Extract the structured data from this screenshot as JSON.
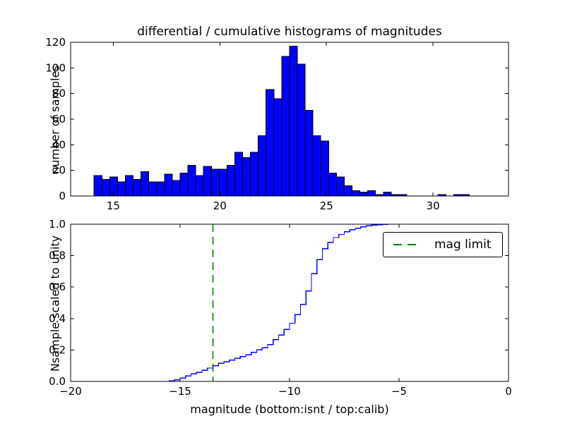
{
  "figure": {
    "background": "#ffffff",
    "title": "differential / cumulative histograms of magnitudes"
  },
  "colors": {
    "hist_fill": "#0000ff",
    "hist_edge": "#000000",
    "cumulative_line": "#0000ff",
    "mag_limit_line": "#008000",
    "axes": "#000000",
    "text": "#000000"
  },
  "legend": {
    "label": "mag limit",
    "position": "upper right",
    "marker": "green-dashed-line"
  },
  "chart_data": [
    {
      "type": "bar",
      "role": "differential-histogram-of-magnitudes",
      "title": "differential / cumulative histograms of magnitudes",
      "xlabel": "",
      "ylabel": "number of samples",
      "xlim": [
        13.0,
        33.54
      ],
      "ylim": [
        0,
        120
      ],
      "grid": false,
      "xticks": [
        15,
        20,
        25,
        30
      ],
      "xtick_labels": [
        "15",
        "20",
        "25",
        "30"
      ],
      "yticks": [
        0,
        20,
        40,
        60,
        80,
        100,
        120
      ],
      "ytick_labels": [
        "0",
        "20",
        "40",
        "60",
        "80",
        "100",
        "120"
      ],
      "bin_start": 14.1,
      "bin_width": 0.3667,
      "counts": [
        16,
        13,
        15,
        11,
        16,
        13,
        19,
        11,
        11,
        17,
        12,
        18,
        24,
        16,
        23,
        21,
        21,
        24,
        34,
        30,
        34,
        47,
        83,
        76,
        109,
        117,
        103,
        67,
        47,
        43,
        18,
        15,
        8,
        4,
        3,
        4,
        1,
        3,
        1,
        1,
        0,
        0,
        0,
        0,
        1,
        0,
        1,
        1,
        0
      ]
    },
    {
      "type": "line",
      "role": "cumulative-histogram-scaled-to-unity",
      "line_style": "steps",
      "xlabel": "magnitude (bottom:isnt / top:calib)",
      "ylabel": "Nsample scaled to unity",
      "xlim": [
        -20,
        0
      ],
      "ylim": [
        0.0,
        1.0
      ],
      "grid": false,
      "xticks": [
        -20,
        -15,
        -10,
        -5,
        0
      ],
      "xtick_labels": [
        "−20",
        "−15",
        "−10",
        "−5",
        "0"
      ],
      "yticks": [
        0.0,
        0.2,
        0.4,
        0.6,
        0.8,
        1.0
      ],
      "ytick_labels": [
        "0.0",
        "0.2",
        "0.4",
        "0.6",
        "0.8",
        "1.0"
      ],
      "step_edges": [
        -15.5,
        -15.25,
        -15.0,
        -14.75,
        -14.5,
        -14.25,
        -14.0,
        -13.75,
        -13.5,
        -13.25,
        -13.0,
        -12.75,
        -12.5,
        -12.25,
        -12.0,
        -11.75,
        -11.5,
        -11.25,
        -11.0,
        -10.75,
        -10.5,
        -10.25,
        -10.0,
        -9.75,
        -9.5,
        -9.25,
        -9.0,
        -8.75,
        -8.5,
        -8.25,
        -8.0,
        -7.75,
        -7.5,
        -7.25,
        -7.0,
        -6.75,
        -6.5,
        -6.25,
        -6.0,
        -5.75,
        -5.5
      ],
      "step_fractions": [
        0.003,
        0.01,
        0.022,
        0.035,
        0.048,
        0.058,
        0.07,
        0.085,
        0.1,
        0.115,
        0.125,
        0.135,
        0.147,
        0.158,
        0.17,
        0.185,
        0.2,
        0.215,
        0.235,
        0.265,
        0.295,
        0.33,
        0.37,
        0.425,
        0.49,
        0.575,
        0.685,
        0.775,
        0.845,
        0.885,
        0.915,
        0.935,
        0.952,
        0.965,
        0.975,
        0.983,
        0.99,
        0.994,
        0.996,
        0.998,
        1.0
      ],
      "mag_limit": -13.5,
      "legend_label": "mag limit"
    }
  ]
}
